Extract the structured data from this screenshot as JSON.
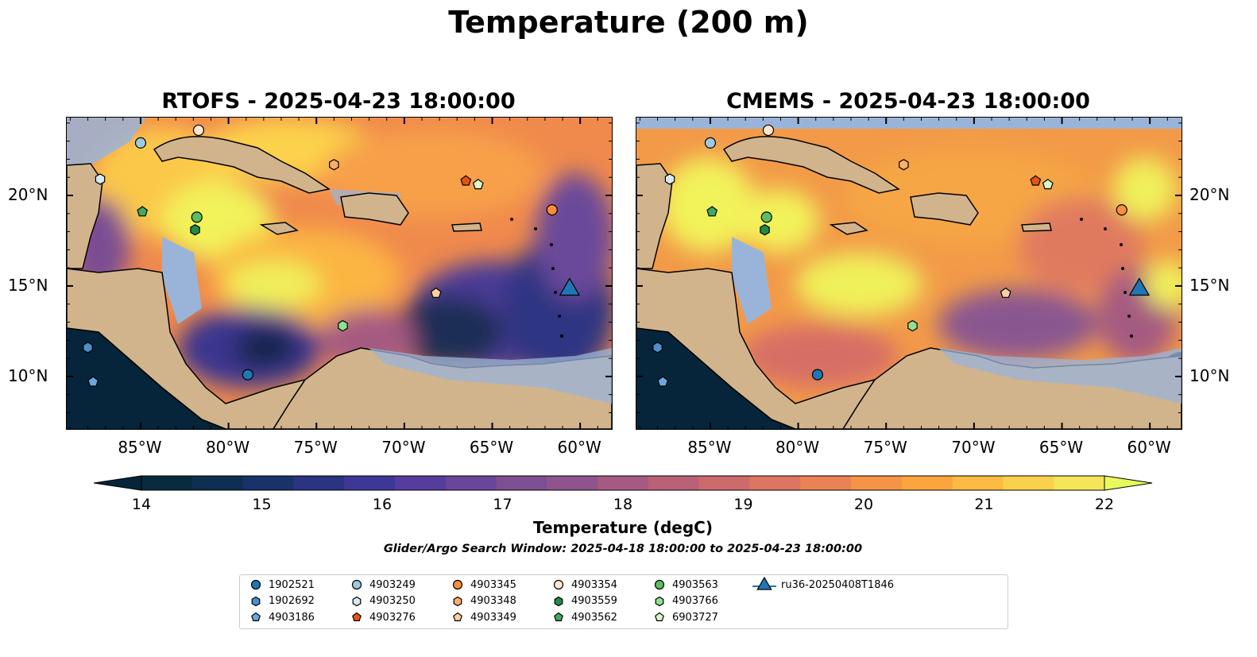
{
  "title": "Temperature (200 m)",
  "panels": [
    {
      "title": "RTOFS - 2025-04-23 18:00:00"
    },
    {
      "title": "CMEMS - 2025-04-23 18:00:00"
    }
  ],
  "axes": {
    "lon_labels": [
      "85°W",
      "80°W",
      "75°W",
      "70°W",
      "65°W",
      "60°W"
    ],
    "lat_labels": [
      "20°N",
      "15°N",
      "10°N"
    ]
  },
  "colorbar": {
    "label": "Temperature (degC)",
    "ticks": [
      "14",
      "15",
      "16",
      "17",
      "18",
      "19",
      "20",
      "21",
      "22"
    ],
    "range": [
      14,
      22
    ],
    "extend": "both",
    "colormap": "thermal",
    "colors": [
      "#0a2a3f",
      "#0f2f52",
      "#19326a",
      "#2a3480",
      "#3d3795",
      "#553c9d",
      "#6a4599",
      "#7d4f93",
      "#8f548b",
      "#a55a81",
      "#ba6177",
      "#cd6a6c",
      "#dd7561",
      "#ea8253",
      "#f59346",
      "#fba53f",
      "#fdba44",
      "#fbd04c",
      "#f3e658"
    ],
    "under_color": "#06243a",
    "over_color": "#e8fa5b"
  },
  "subtitle": "Glider/Argo Search Window: 2025-04-18 18:00:00 to 2025-04-23 18:00:00",
  "land_color": "#d2b48c",
  "shelf_color": "#9ab4d9",
  "legend": [
    {
      "label": "1902521",
      "marker": "circle",
      "color": "#1f77b4"
    },
    {
      "label": "1902692",
      "marker": "hexagon",
      "color": "#4d8fcc"
    },
    {
      "label": "4903186",
      "marker": "pentagon",
      "color": "#6aa7e0"
    },
    {
      "label": "4903249",
      "marker": "circle",
      "color": "#9ecae1"
    },
    {
      "label": "4903250",
      "marker": "hexagon",
      "color": "#d6e9f7"
    },
    {
      "label": "4903276",
      "marker": "pentagon",
      "color": "#e6550d"
    },
    {
      "label": "4903345",
      "marker": "circle",
      "color": "#fd8d3c"
    },
    {
      "label": "4903348",
      "marker": "hexagon",
      "color": "#fdae6b"
    },
    {
      "label": "4903349",
      "marker": "pentagon",
      "color": "#fdd0a2"
    },
    {
      "label": "4903354",
      "marker": "circle",
      "color": "#fee6ce"
    },
    {
      "label": "4903559",
      "marker": "hexagon",
      "color": "#238b45"
    },
    {
      "label": "4903562",
      "marker": "pentagon",
      "color": "#41ab5d"
    },
    {
      "label": "4903563",
      "marker": "circle",
      "color": "#5cbf5c"
    },
    {
      "label": "4903766",
      "marker": "hexagon",
      "color": "#90e090"
    },
    {
      "label": "6903727",
      "marker": "pentagon",
      "color": "#d9f7c8"
    },
    {
      "label": "ru36-20250408T1846",
      "marker": "triangle",
      "color": "#1f77b4"
    }
  ],
  "floats": [
    {
      "id": "1902521",
      "lon": -78.9,
      "lat": 10.1
    },
    {
      "id": "1902692",
      "lon": -88.0,
      "lat": 11.6
    },
    {
      "id": "4903186",
      "lon": -87.7,
      "lat": 9.7
    },
    {
      "id": "4903249",
      "lon": -85.0,
      "lat": 22.9
    },
    {
      "id": "4903250",
      "lon": -87.3,
      "lat": 20.9
    },
    {
      "id": "4903276",
      "lon": -66.5,
      "lat": 20.8
    },
    {
      "id": "4903345",
      "lon": -61.6,
      "lat": 19.2
    },
    {
      "id": "4903348",
      "lon": -74.0,
      "lat": 21.7
    },
    {
      "id": "4903349",
      "lon": -68.2,
      "lat": 14.6
    },
    {
      "id": "4903354",
      "lon": -81.7,
      "lat": 23.6
    },
    {
      "id": "4903559",
      "lon": -81.9,
      "lat": 18.1
    },
    {
      "id": "4903562",
      "lon": -84.9,
      "lat": 19.1
    },
    {
      "id": "4903563",
      "lon": -81.8,
      "lat": 18.8
    },
    {
      "id": "4903766",
      "lon": -73.5,
      "lat": 12.8
    },
    {
      "id": "6903727",
      "lon": -65.8,
      "lat": 20.6
    },
    {
      "id": "ru36-20250408T1846",
      "lon": -60.6,
      "lat": 14.8
    }
  ]
}
